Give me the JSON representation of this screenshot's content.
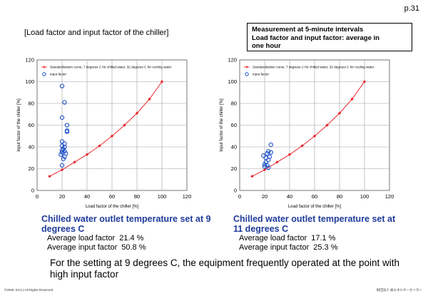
{
  "page_number": "p.31",
  "slide_title": "[Load factor and input factor of the chiller]",
  "note_lines": [
    "Measurement at 5-minute intervals",
    "Load factor and input factor: average in",
    "one hour"
  ],
  "panels": [
    {
      "heading": "Chilled water outlet temperature set at 9 degrees C",
      "load_label": "Average load factor",
      "load_value": "21.4 %",
      "input_label": "Average input factor",
      "input_value": "50.8 %"
    },
    {
      "heading": "Chilled water outlet temperature set at 11 degrees C",
      "load_label": "Average load factor",
      "load_value": "17.1 %",
      "input_label": "Average input factor",
      "input_value": "25.3 %"
    }
  ],
  "conclusion": "For the setting at 9 degrees C, the equipment frequently operated at the point with high input factor",
  "copyright": "©2009. ECCJ All Rights Reserved",
  "organization": "財団法人 省エネルギーセンター",
  "colors": {
    "heading": "#1f3b9a",
    "curve": "#e8282b",
    "points": "#1a4fc9"
  },
  "chart_data": [
    {
      "type": "scatter",
      "xlabel": "Load factor of the chiller [%]",
      "ylabel": "Input factor of the chiller [%]",
      "xlim": [
        0,
        120
      ],
      "ylim": [
        0,
        120
      ],
      "xticks": [
        0,
        20,
        40,
        60,
        80,
        100,
        120
      ],
      "yticks": [
        0,
        20,
        40,
        60,
        80,
        100,
        120
      ],
      "grid": true,
      "legend_position": "top-left",
      "series": [
        {
          "name": "Standardization curve, 7 degrees C for chilled water, 32 degrees C for cooling water",
          "marker": "diamond",
          "line": true,
          "points": [
            [
              10,
              13
            ],
            [
              20,
              19
            ],
            [
              30,
              26
            ],
            [
              40,
              33
            ],
            [
              50,
              41
            ],
            [
              60,
              50
            ],
            [
              70,
              60
            ],
            [
              80,
              71
            ],
            [
              90,
              84
            ],
            [
              100,
              100
            ]
          ]
        },
        {
          "name": "Input factor",
          "marker": "circle",
          "line": false,
          "points": [
            [
              20,
              96
            ],
            [
              22,
              81
            ],
            [
              20,
              67
            ],
            [
              24,
              60
            ],
            [
              24,
              55
            ],
            [
              24,
              54
            ],
            [
              20,
              45
            ],
            [
              22,
              43
            ],
            [
              20,
              41
            ],
            [
              22,
              40
            ],
            [
              20,
              37
            ],
            [
              22,
              36
            ],
            [
              20,
              35
            ],
            [
              23,
              34
            ],
            [
              19,
              33
            ],
            [
              22,
              31
            ],
            [
              21,
              29
            ],
            [
              20,
              23
            ],
            [
              21,
              38
            ]
          ]
        }
      ]
    },
    {
      "type": "scatter",
      "xlabel": "Load factor of the chiller [%]",
      "ylabel": "Input factor of the chiller [%]",
      "xlim": [
        0,
        120
      ],
      "ylim": [
        0,
        120
      ],
      "xticks": [
        0,
        20,
        40,
        60,
        80,
        100,
        120
      ],
      "yticks": [
        0,
        20,
        40,
        60,
        80,
        100,
        120
      ],
      "grid": true,
      "legend_position": "top-left",
      "series": [
        {
          "name": "Standardization curve, 7 degrees C for chilled water, 32 degrees C for cooling water",
          "marker": "diamond",
          "line": true,
          "points": [
            [
              10,
              13
            ],
            [
              20,
              19
            ],
            [
              30,
              26
            ],
            [
              40,
              33
            ],
            [
              50,
              41
            ],
            [
              60,
              50
            ],
            [
              70,
              60
            ],
            [
              80,
              71
            ],
            [
              90,
              84
            ],
            [
              100,
              100
            ]
          ]
        },
        {
          "name": "Input factor",
          "marker": "circle",
          "line": false,
          "points": [
            [
              25,
              42
            ],
            [
              23,
              36
            ],
            [
              25,
              35
            ],
            [
              22,
              34
            ],
            [
              19,
              32
            ],
            [
              24,
              31
            ],
            [
              21,
              30
            ],
            [
              23,
              28
            ],
            [
              21,
              26
            ],
            [
              20,
              24
            ],
            [
              22,
              23
            ],
            [
              23,
              21
            ],
            [
              20,
              22
            ]
          ]
        }
      ]
    }
  ]
}
